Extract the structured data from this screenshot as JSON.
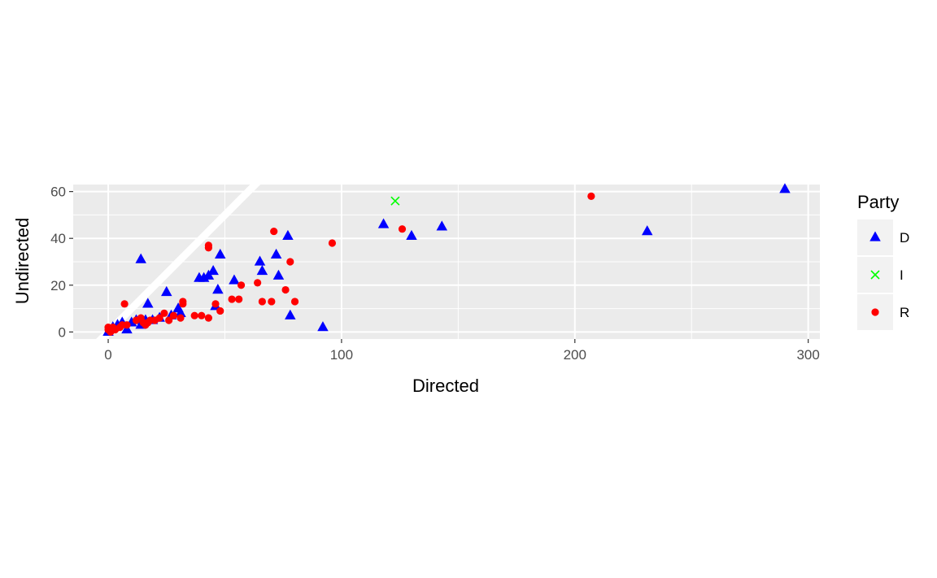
{
  "chart_data": {
    "type": "scatter",
    "title": "",
    "xlabel": "Directed",
    "ylabel": "Undirected",
    "xlim": [
      -15,
      305
    ],
    "ylim": [
      -3,
      63
    ],
    "xticks": [
      0,
      100,
      200,
      300
    ],
    "xtick_labels": [
      "0",
      "100",
      "200",
      "300"
    ],
    "yticks": [
      0,
      20,
      40,
      60
    ],
    "ytick_labels": [
      "0",
      "20",
      "40",
      "60"
    ],
    "xminor": [
      50,
      150,
      250
    ],
    "yminor": [
      10,
      30,
      50
    ],
    "grid": true,
    "reference_line": {
      "slope": 1,
      "intercept": 0,
      "color": "#ffffff"
    },
    "legend": {
      "title": "Party",
      "position": "right",
      "entries": [
        {
          "label": "D",
          "shape": "triangle",
          "color": "#0000ff"
        },
        {
          "label": "I",
          "shape": "cross",
          "color": "#00ff00"
        },
        {
          "label": "R",
          "shape": "circle",
          "color": "#ff0000"
        }
      ]
    },
    "series": [
      {
        "name": "D",
        "shape": "triangle",
        "color": "#0000ff",
        "points": [
          [
            0,
            0
          ],
          [
            2,
            2
          ],
          [
            4,
            3
          ],
          [
            6,
            4
          ],
          [
            8,
            1
          ],
          [
            10,
            4
          ],
          [
            12,
            5
          ],
          [
            14,
            3
          ],
          [
            14,
            31
          ],
          [
            16,
            5
          ],
          [
            17,
            12
          ],
          [
            19,
            5
          ],
          [
            22,
            6
          ],
          [
            25,
            17
          ],
          [
            27,
            7
          ],
          [
            30,
            10
          ],
          [
            31,
            8
          ],
          [
            39,
            23
          ],
          [
            41,
            23
          ],
          [
            43,
            24
          ],
          [
            45,
            26
          ],
          [
            46,
            11
          ],
          [
            47,
            18
          ],
          [
            48,
            33
          ],
          [
            54,
            22
          ],
          [
            65,
            30
          ],
          [
            66,
            26
          ],
          [
            72,
            33
          ],
          [
            73,
            24
          ],
          [
            77,
            41
          ],
          [
            78,
            7
          ],
          [
            92,
            2
          ],
          [
            118,
            46
          ],
          [
            130,
            41
          ],
          [
            143,
            45
          ],
          [
            231,
            43
          ],
          [
            290,
            61
          ]
        ]
      },
      {
        "name": "I",
        "shape": "cross",
        "color": "#00ff00",
        "points": [
          [
            123,
            56
          ]
        ]
      },
      {
        "name": "R",
        "shape": "circle",
        "color": "#ff0000",
        "points": [
          [
            0,
            1
          ],
          [
            0,
            2
          ],
          [
            1,
            0
          ],
          [
            1,
            1
          ],
          [
            2,
            2
          ],
          [
            3,
            1
          ],
          [
            5,
            2
          ],
          [
            6,
            3
          ],
          [
            7,
            12
          ],
          [
            8,
            3
          ],
          [
            12,
            5
          ],
          [
            14,
            6
          ],
          [
            15,
            4
          ],
          [
            16,
            3
          ],
          [
            17,
            4
          ],
          [
            18,
            5
          ],
          [
            20,
            5
          ],
          [
            22,
            6
          ],
          [
            24,
            8
          ],
          [
            26,
            5
          ],
          [
            28,
            7
          ],
          [
            31,
            6
          ],
          [
            32,
            12
          ],
          [
            32,
            13
          ],
          [
            37,
            7
          ],
          [
            40,
            7
          ],
          [
            43,
            6
          ],
          [
            43,
            36
          ],
          [
            43,
            37
          ],
          [
            46,
            12
          ],
          [
            48,
            9
          ],
          [
            53,
            14
          ],
          [
            56,
            14
          ],
          [
            57,
            20
          ],
          [
            64,
            21
          ],
          [
            66,
            13
          ],
          [
            70,
            13
          ],
          [
            71,
            43
          ],
          [
            76,
            18
          ],
          [
            78,
            30
          ],
          [
            80,
            13
          ],
          [
            96,
            38
          ],
          [
            126,
            44
          ],
          [
            207,
            58
          ]
        ]
      }
    ]
  }
}
